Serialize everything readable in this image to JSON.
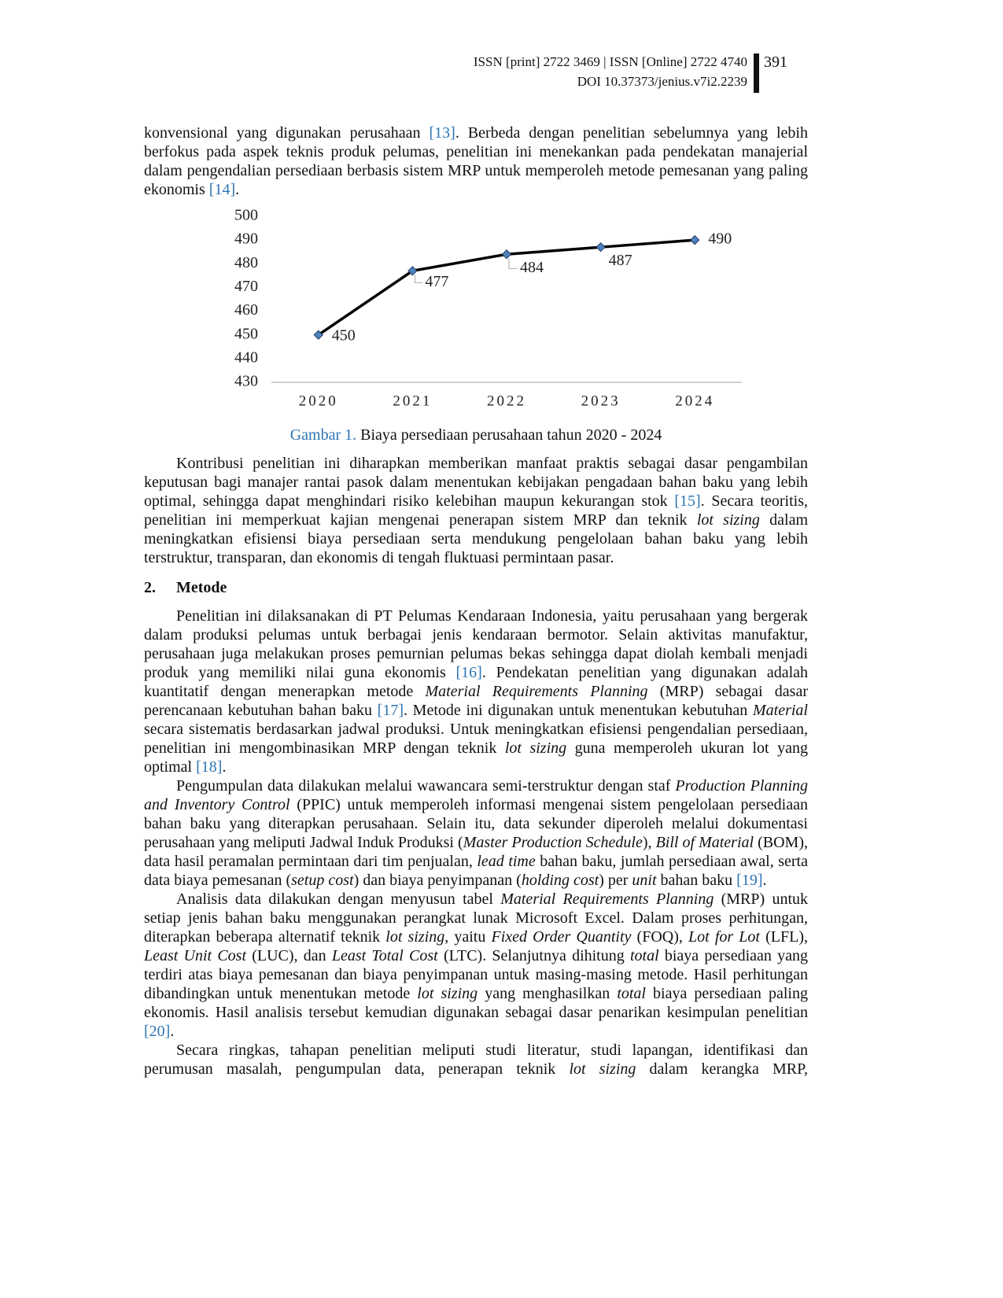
{
  "header": {
    "issn": "ISSN [print] 2722 3469 | ISSN [Online] 2722 4740",
    "doi": "DOI 10.37373/jenius.v7i2.2239",
    "page": "391"
  },
  "paragraph_1": [
    "konvensional yang digunakan perusahaan ",
    {
      "ref": "[13]"
    },
    ". Berbeda dengan penelitian sebelumnya yang lebih berfokus pada aspek teknis produk pelumas, penelitian ini menekankan pada pendekatan manajerial dalam pengendalian persediaan berbasis sistem MRP untuk memperoleh metode pemesanan yang paling ekonomis ",
    {
      "ref": "[14]"
    },
    "."
  ],
  "chart_data": {
    "type": "line",
    "categories": [
      "2020",
      "2021",
      "2022",
      "2023",
      "2024"
    ],
    "values": [
      450,
      477,
      484,
      487,
      490
    ],
    "color": "#000000",
    "marker_color": "#4f81bd",
    "ylim": [
      430,
      500
    ],
    "yticks": [
      430,
      440,
      450,
      460,
      470,
      480,
      490,
      500
    ],
    "grid": false,
    "data_labels": true
  },
  "figure": {
    "label": "Gambar 1.",
    "caption": " Biaya persediaan perusahaan tahun 2020 - 2024"
  },
  "paragraph_2": [
    "Kontribusi penelitian ini diharapkan memberikan manfaat praktis sebagai dasar pengambilan keputusan bagi manajer rantai pasok dalam menentukan kebijakan pengadaan bahan baku yang lebih optimal, sehingga dapat menghindari risiko kelebihan maupun kekurangan stok ",
    {
      "ref": "[15]"
    },
    ". Secara teoritis, penelitian ini memperkuat kajian mengenai penerapan sistem MRP dan teknik ",
    {
      "i": "lot sizing"
    },
    " dalam meningkatkan efisiensi biaya persediaan serta mendukung pengelolaan bahan baku yang lebih terstruktur, transparan, dan ekonomis di tengah fluktuasi permintaan pasar."
  ],
  "heading": {
    "number": "2.",
    "title": "Metode"
  },
  "method_paragraphs": [
    [
      "Penelitian ini dilaksanakan di PT Pelumas Kendaraan Indonesia, yaitu perusahaan yang bergerak dalam produksi pelumas untuk berbagai jenis kendaraan bermotor. Selain aktivitas manufaktur, perusahaan juga melakukan proses pemurnian pelumas bekas sehingga dapat diolah kembali menjadi produk yang memiliki nilai guna ekonomis ",
      {
        "ref": "[16]"
      },
      ". Pendekatan penelitian yang digunakan adalah kuantitatif dengan menerapkan metode ",
      {
        "i": "Material Requirements Planning"
      },
      " (MRP) sebagai dasar perencanaan kebutuhan bahan baku ",
      {
        "ref": "[17]"
      },
      ". Metode ini digunakan untuk menentukan kebutuhan ",
      {
        "i": "Material"
      },
      " secara sistematis berdasarkan jadwal produksi. Untuk meningkatkan efisiensi pengendalian persediaan, penelitian ini mengombinasikan MRP dengan teknik ",
      {
        "i": "lot sizing"
      },
      " guna memperoleh ukuran lot yang optimal ",
      {
        "ref": "[18]"
      },
      "."
    ],
    [
      "Pengumpulan data dilakukan melalui wawancara semi-terstruktur dengan staf ",
      {
        "i": "Production Planning and Inventory Control"
      },
      " (PPIC) untuk memperoleh informasi mengenai sistem pengelolaan persediaan bahan baku yang diterapkan perusahaan. Selain itu, data sekunder diperoleh melalui dokumentasi perusahaan yang meliputi Jadwal Induk Produksi (",
      {
        "i": "Master Production Schedule"
      },
      "), ",
      {
        "i": "Bill of Material"
      },
      " (BOM), data hasil peramalan permintaan dari tim penjualan, ",
      {
        "i": "lead time"
      },
      " bahan baku, jumlah persediaan awal, serta data biaya pemesanan (",
      {
        "i": "setup cost"
      },
      ") dan biaya penyimpanan (",
      {
        "i": "holding cost"
      },
      ") per ",
      {
        "i": "unit"
      },
      " bahan baku ",
      {
        "ref": "[19]"
      },
      "."
    ],
    [
      "Analisis data dilakukan dengan menyusun tabel ",
      {
        "i": "Material Requirements Planning"
      },
      " (MRP) untuk setiap jenis bahan baku menggunakan perangkat lunak Microsoft Excel. Dalam proses perhitungan, diterapkan beberapa alternatif teknik ",
      {
        "i": "lot sizing"
      },
      ", yaitu ",
      {
        "i": "Fixed Order Quantity"
      },
      " (FOQ), ",
      {
        "i": "Lot for Lot"
      },
      " (LFL), ",
      {
        "i": "Least Unit Cost"
      },
      " (LUC), dan ",
      {
        "i": "Least Total Cost"
      },
      " (LTC). Selanjutnya dihitung ",
      {
        "i": "total"
      },
      " biaya persediaan yang terdiri atas biaya pemesanan dan biaya penyimpanan untuk masing-masing metode. Hasil perhitungan dibandingkan untuk menentukan metode ",
      {
        "i": "lot sizing"
      },
      " yang menghasilkan ",
      {
        "i": "total"
      },
      " biaya persediaan paling ekonomis. Hasil analisis tersebut kemudian digunakan sebagai dasar penarikan kesimpulan penelitian ",
      {
        "ref": "[20]"
      },
      "."
    ],
    [
      "Secara ringkas, tahapan penelitian meliputi studi literatur, studi lapangan, identifikasi dan perumusan masalah, pengumpulan data, penerapan teknik ",
      {
        "i": "lot sizing"
      },
      " dalam kerangka MRP,"
    ]
  ]
}
